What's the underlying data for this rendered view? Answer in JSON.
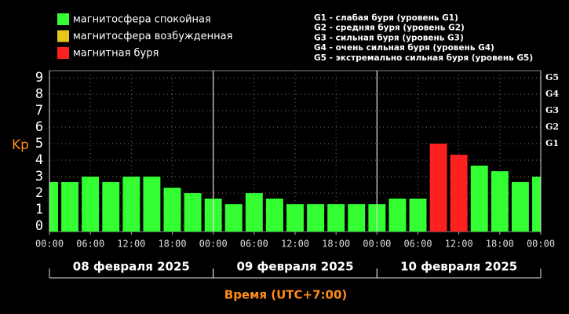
{
  "chart_data": {
    "type": "bar",
    "y_label": "Kp",
    "x_label": "Время (UTC+7:00)",
    "legend": [
      {
        "name": "магнитосфера спокойная",
        "color": "#33ff33"
      },
      {
        "name": "магнитосфера возбужденная",
        "color": "#e6c619"
      },
      {
        "name": "магнитная буря",
        "color": "#ff2020"
      }
    ],
    "storm_levels": [
      "G1 - слабая буря (уровень G1)",
      "G2 - средняя буря (уровень G2)",
      "G3 - сильная буря (уровень G3)",
      "G4 - очень сильная буря (уровень G4)",
      "G5 - экстремально сильная буря (уровень G5)"
    ],
    "x": [
      0,
      3,
      6,
      9,
      12,
      15,
      18,
      21,
      24,
      27,
      30,
      33,
      36,
      39,
      42,
      45,
      48,
      51,
      54,
      57,
      60,
      63,
      66,
      69,
      72
    ],
    "values": [
      2.67,
      2.67,
      3,
      2.67,
      3,
      3,
      2.33,
      2,
      1.67,
      1.33,
      2,
      1.67,
      1.33,
      1.33,
      1.33,
      1.33,
      1.33,
      1.67,
      1.67,
      5,
      4.33,
      3.67,
      3.33,
      2.67,
      3
    ],
    "colors": [
      "#33ff33",
      "#33ff33",
      "#33ff33",
      "#33ff33",
      "#33ff33",
      "#33ff33",
      "#33ff33",
      "#33ff33",
      "#33ff33",
      "#33ff33",
      "#33ff33",
      "#33ff33",
      "#33ff33",
      "#33ff33",
      "#33ff33",
      "#33ff33",
      "#33ff33",
      "#33ff33",
      "#33ff33",
      "#ff2020",
      "#ff2020",
      "#33ff33",
      "#33ff33",
      "#33ff33",
      "#33ff33"
    ],
    "xlim": [
      0,
      72
    ],
    "xticks": [
      {
        "value": 0,
        "label": "00:00"
      },
      {
        "value": 6,
        "label": "06:00"
      },
      {
        "value": 12,
        "label": "12:00"
      },
      {
        "value": 18,
        "label": "18:00"
      },
      {
        "value": 24,
        "label": "00:00"
      },
      {
        "value": 30,
        "label": "06:00"
      },
      {
        "value": 36,
        "label": "12:00"
      },
      {
        "value": 42,
        "label": "18:00"
      },
      {
        "value": 48,
        "label": "00:00"
      },
      {
        "value": 54,
        "label": "06:00"
      },
      {
        "value": 60,
        "label": "12:00"
      },
      {
        "value": 66,
        "label": "18:00"
      },
      {
        "value": 72,
        "label": "00:00"
      }
    ],
    "days": [
      {
        "label": "08 февраля 2025",
        "range": [
          0,
          24
        ]
      },
      {
        "label": "09 февраля 2025",
        "range": [
          24,
          48
        ]
      },
      {
        "label": "10 февраля 2025",
        "range": [
          48,
          72
        ]
      }
    ],
    "ylim": [
      -0.33,
      9.43
    ],
    "yticks": [
      0,
      1,
      2,
      3,
      4,
      5,
      6,
      7,
      8,
      9
    ],
    "y2lim": [
      -0.33,
      9.43
    ],
    "y2ticks": [
      {
        "value": 5,
        "label": "G1"
      },
      {
        "value": 6,
        "label": "G2"
      },
      {
        "value": 7,
        "label": "G3"
      },
      {
        "value": 8,
        "label": "G4"
      },
      {
        "value": 9,
        "label": "G5"
      }
    ],
    "grid": true
  }
}
